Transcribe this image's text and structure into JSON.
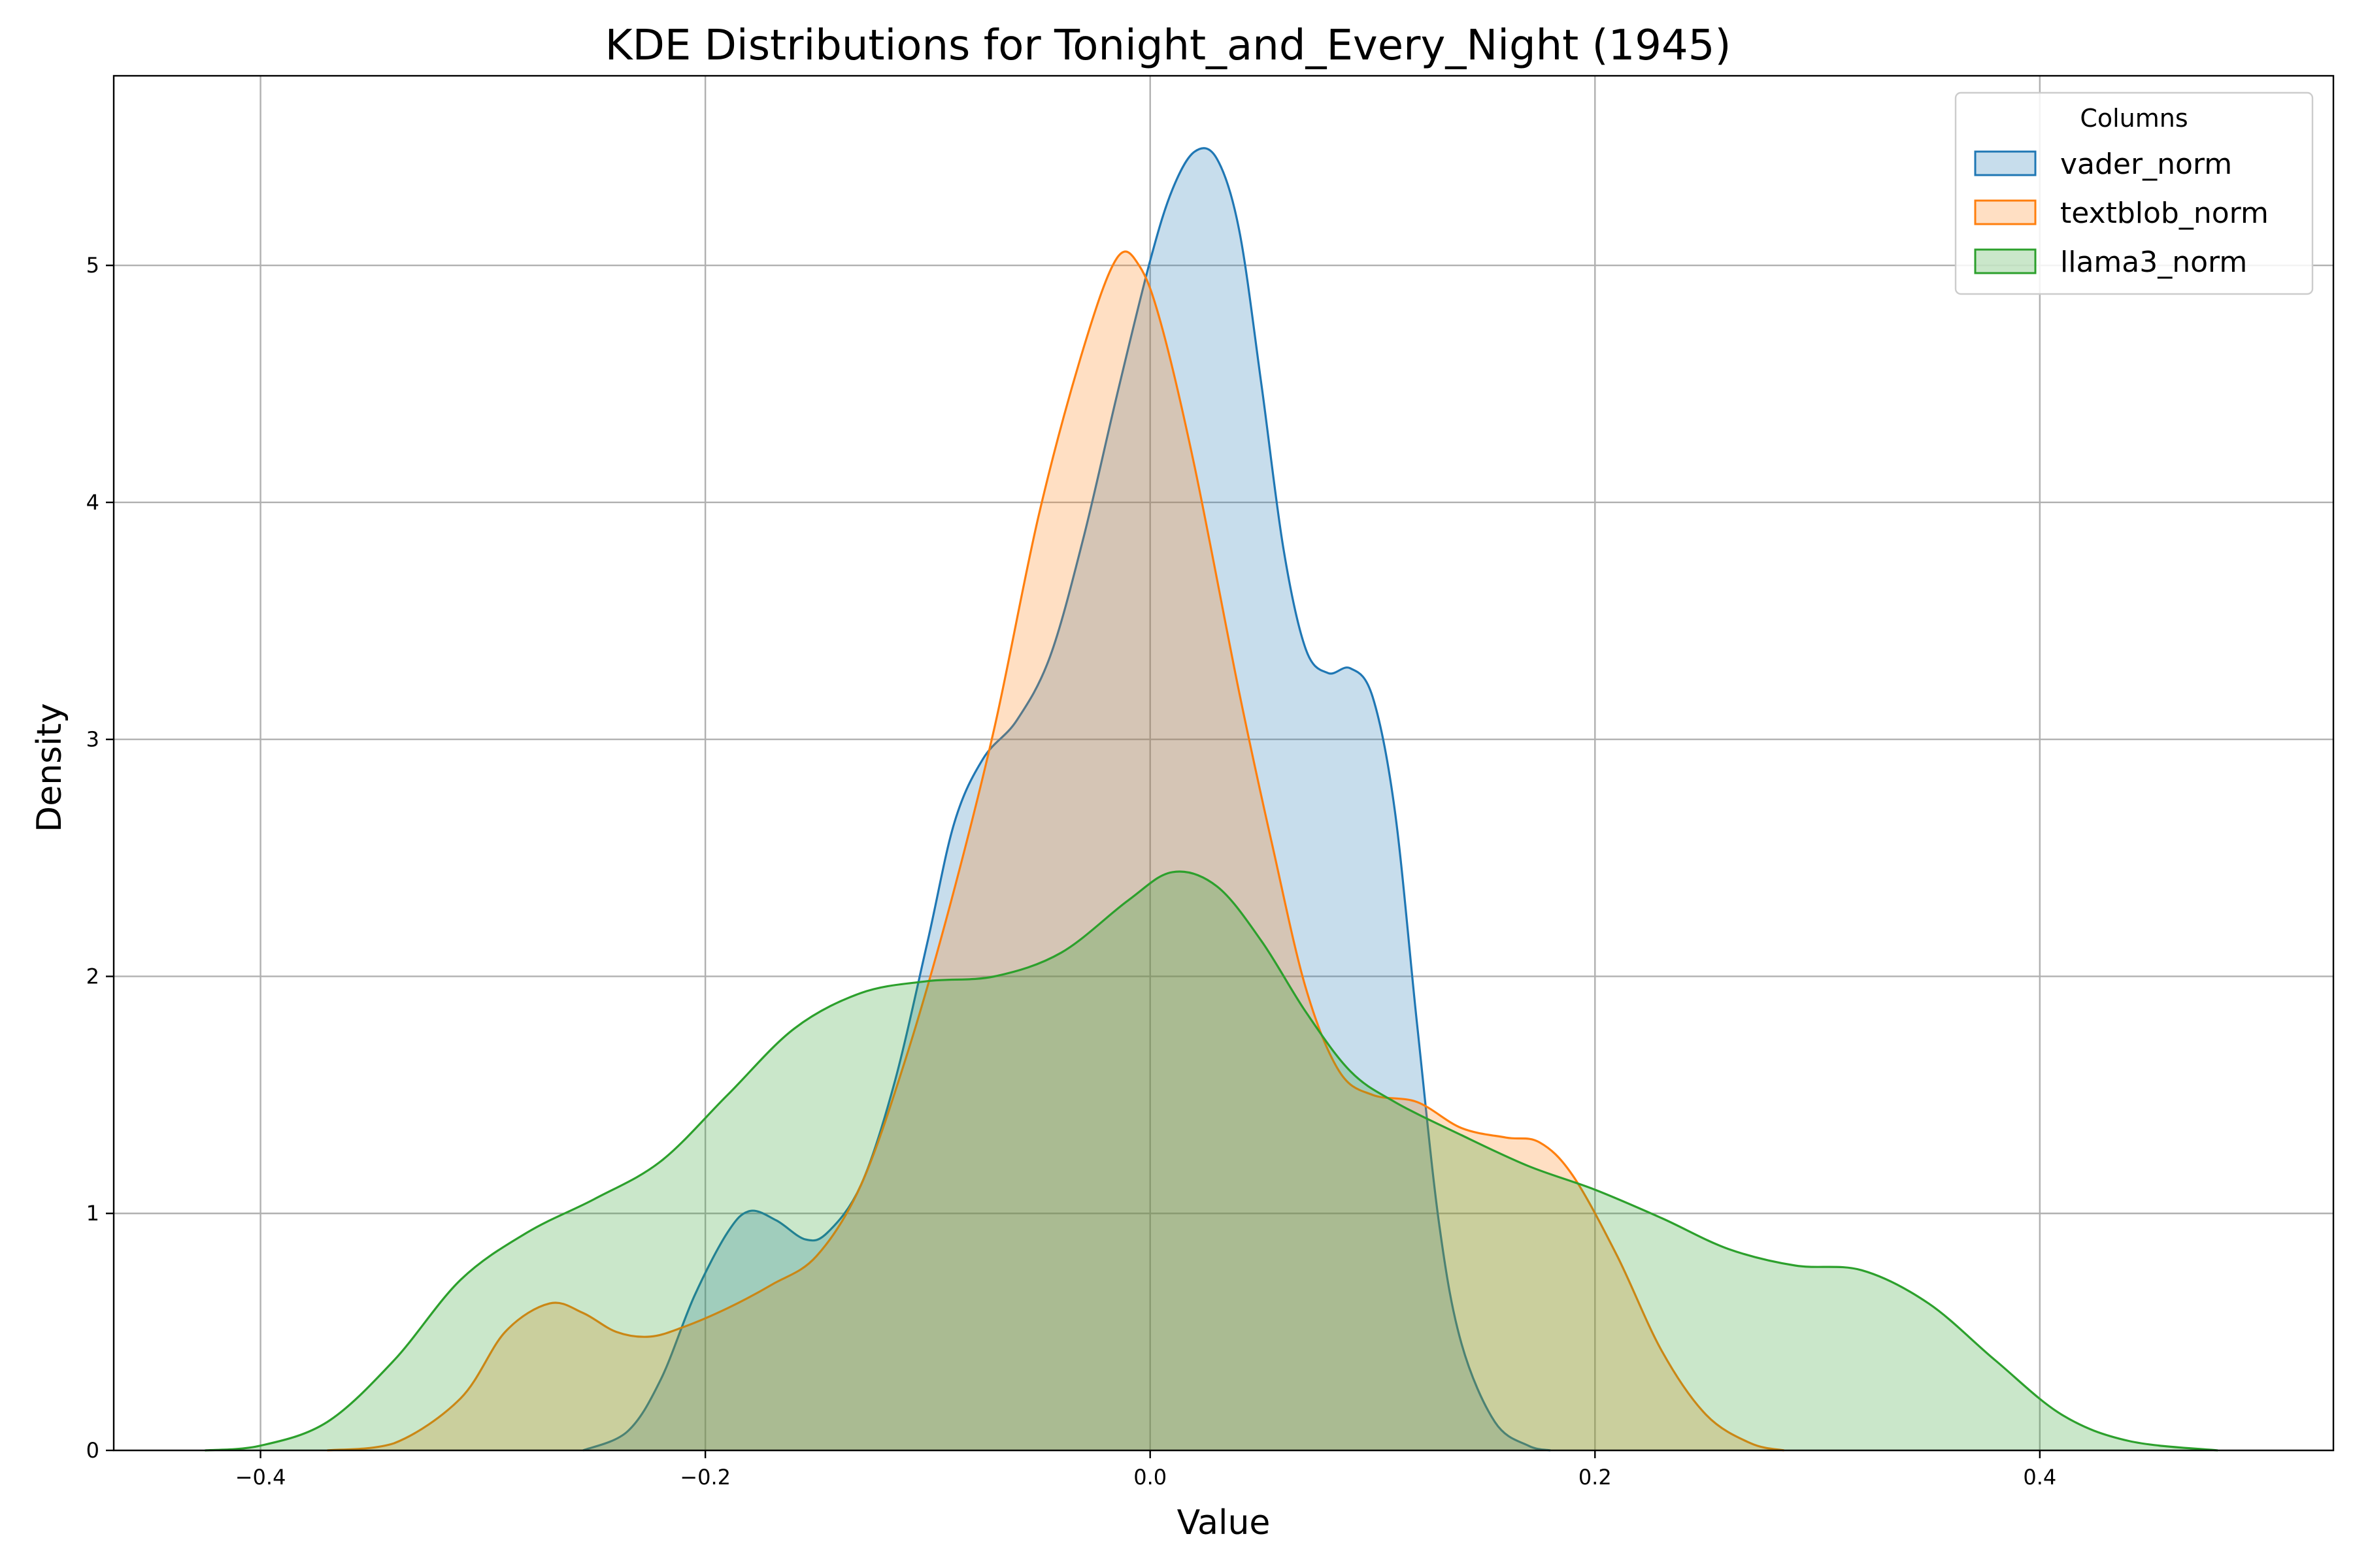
{
  "chart_data": {
    "type": "area",
    "title": "KDE Distributions for Tonight_and_Every_Night (1945)",
    "xlabel": "Value",
    "ylabel": "Density",
    "xlim": [
      -0.466,
      0.532
    ],
    "ylim": [
      0,
      5.8
    ],
    "xticks": [
      -0.4,
      -0.2,
      0.0,
      0.2,
      0.4
    ],
    "xtick_labels": [
      "−0.4",
      "−0.2",
      "0.0",
      "0.2",
      "0.4"
    ],
    "yticks": [
      0,
      1,
      2,
      3,
      4,
      5
    ],
    "ytick_labels": [
      "0",
      "1",
      "2",
      "3",
      "4",
      "5"
    ],
    "grid": true,
    "legend": {
      "title": "Columns",
      "location": "top-right"
    },
    "series": [
      {
        "name": "vader_norm",
        "color": "#1f77b4",
        "fill": "#1f77b4",
        "points": [
          [
            -0.255,
            0.0
          ],
          [
            -0.235,
            0.08
          ],
          [
            -0.22,
            0.3
          ],
          [
            -0.205,
            0.65
          ],
          [
            -0.19,
            0.92
          ],
          [
            -0.18,
            1.01
          ],
          [
            -0.168,
            0.97
          ],
          [
            -0.155,
            0.89
          ],
          [
            -0.145,
            0.92
          ],
          [
            -0.13,
            1.12
          ],
          [
            -0.115,
            1.55
          ],
          [
            -0.1,
            2.15
          ],
          [
            -0.088,
            2.65
          ],
          [
            -0.075,
            2.92
          ],
          [
            -0.06,
            3.08
          ],
          [
            -0.045,
            3.35
          ],
          [
            -0.03,
            3.85
          ],
          [
            -0.015,
            4.45
          ],
          [
            0.0,
            5.02
          ],
          [
            0.01,
            5.32
          ],
          [
            0.02,
            5.48
          ],
          [
            0.03,
            5.45
          ],
          [
            0.04,
            5.15
          ],
          [
            0.05,
            4.5
          ],
          [
            0.06,
            3.8
          ],
          [
            0.07,
            3.38
          ],
          [
            0.08,
            3.28
          ],
          [
            0.09,
            3.3
          ],
          [
            0.1,
            3.18
          ],
          [
            0.11,
            2.7
          ],
          [
            0.12,
            1.8
          ],
          [
            0.13,
            0.95
          ],
          [
            0.14,
            0.45
          ],
          [
            0.155,
            0.12
          ],
          [
            0.17,
            0.02
          ],
          [
            0.18,
            0.0
          ]
        ]
      },
      {
        "name": "textblob_norm",
        "color": "#ff7f0e",
        "fill": "#ff7f0e",
        "points": [
          [
            -0.37,
            0.0
          ],
          [
            -0.34,
            0.03
          ],
          [
            -0.31,
            0.22
          ],
          [
            -0.29,
            0.5
          ],
          [
            -0.27,
            0.62
          ],
          [
            -0.255,
            0.58
          ],
          [
            -0.24,
            0.5
          ],
          [
            -0.225,
            0.48
          ],
          [
            -0.21,
            0.52
          ],
          [
            -0.19,
            0.6
          ],
          [
            -0.17,
            0.7
          ],
          [
            -0.15,
            0.82
          ],
          [
            -0.13,
            1.12
          ],
          [
            -0.11,
            1.65
          ],
          [
            -0.09,
            2.3
          ],
          [
            -0.07,
            3.05
          ],
          [
            -0.05,
            3.95
          ],
          [
            -0.03,
            4.65
          ],
          [
            -0.015,
            5.03
          ],
          [
            -0.005,
            5.0
          ],
          [
            0.005,
            4.75
          ],
          [
            0.02,
            4.15
          ],
          [
            0.04,
            3.2
          ],
          [
            0.055,
            2.55
          ],
          [
            0.07,
            1.95
          ],
          [
            0.085,
            1.6
          ],
          [
            0.1,
            1.5
          ],
          [
            0.12,
            1.47
          ],
          [
            0.14,
            1.36
          ],
          [
            0.16,
            1.32
          ],
          [
            0.175,
            1.3
          ],
          [
            0.19,
            1.16
          ],
          [
            0.21,
            0.82
          ],
          [
            0.23,
            0.42
          ],
          [
            0.25,
            0.15
          ],
          [
            0.27,
            0.03
          ],
          [
            0.285,
            0.0
          ]
        ]
      },
      {
        "name": "llama3_norm",
        "color": "#2ca02c",
        "fill": "#2ca02c",
        "points": [
          [
            -0.425,
            0.0
          ],
          [
            -0.4,
            0.02
          ],
          [
            -0.37,
            0.12
          ],
          [
            -0.34,
            0.38
          ],
          [
            -0.31,
            0.72
          ],
          [
            -0.28,
            0.92
          ],
          [
            -0.25,
            1.06
          ],
          [
            -0.22,
            1.22
          ],
          [
            -0.19,
            1.5
          ],
          [
            -0.16,
            1.78
          ],
          [
            -0.13,
            1.93
          ],
          [
            -0.1,
            1.98
          ],
          [
            -0.07,
            2.0
          ],
          [
            -0.04,
            2.1
          ],
          [
            -0.01,
            2.32
          ],
          [
            0.01,
            2.44
          ],
          [
            0.03,
            2.38
          ],
          [
            0.05,
            2.15
          ],
          [
            0.07,
            1.85
          ],
          [
            0.09,
            1.6
          ],
          [
            0.11,
            1.47
          ],
          [
            0.14,
            1.33
          ],
          [
            0.17,
            1.2
          ],
          [
            0.2,
            1.1
          ],
          [
            0.23,
            0.98
          ],
          [
            0.26,
            0.85
          ],
          [
            0.29,
            0.78
          ],
          [
            0.32,
            0.76
          ],
          [
            0.35,
            0.62
          ],
          [
            0.38,
            0.38
          ],
          [
            0.41,
            0.15
          ],
          [
            0.44,
            0.04
          ],
          [
            0.48,
            0.0
          ]
        ]
      }
    ]
  }
}
